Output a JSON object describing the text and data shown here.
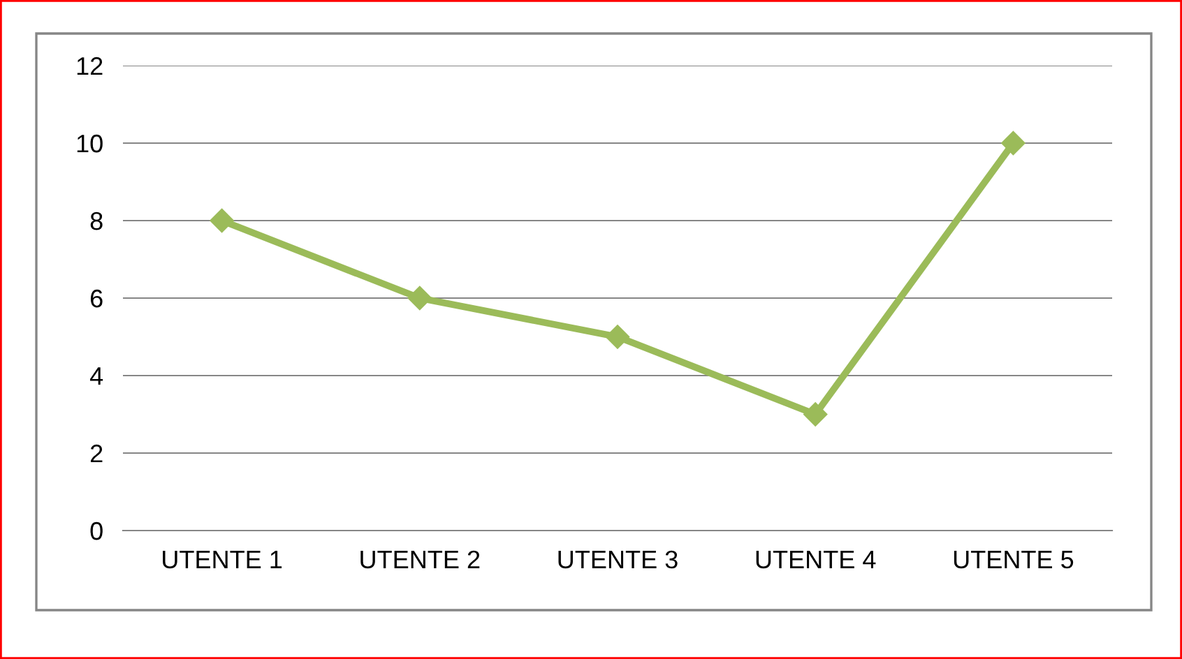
{
  "chart_data": {
    "type": "line",
    "categories": [
      "UTENTE 1",
      "UTENTE 2",
      "UTENTE 3",
      "UTENTE 4",
      "UTENTE 5"
    ],
    "series": [
      {
        "color": "#9bbb59",
        "values": [
          8,
          6,
          5,
          3,
          10
        ]
      }
    ],
    "ylim": [
      0,
      12
    ],
    "yticks": [
      0,
      2,
      4,
      6,
      8,
      10,
      12
    ],
    "grid": "y",
    "marker": "diamond",
    "line_style": "solid",
    "legend": false
  }
}
